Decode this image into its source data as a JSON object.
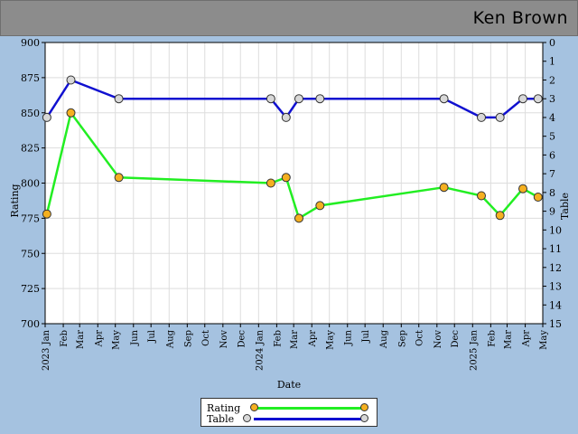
{
  "header": {
    "title": "Ken Brown"
  },
  "chart_data": {
    "type": "line",
    "xlabel": "Date",
    "ylabel": "Rating",
    "y2label": "Table",
    "ylim": [
      700,
      900
    ],
    "y2lim": [
      0,
      15
    ],
    "y2_inverted": true,
    "yticks": [
      "700",
      "725",
      "750",
      "775",
      "800",
      "825",
      "850",
      "875",
      "900"
    ],
    "y2ticks": [
      "0",
      "1",
      "2",
      "3",
      "4",
      "5",
      "6",
      "7",
      "8",
      "9",
      "10",
      "11",
      "12",
      "13",
      "14",
      "15"
    ],
    "xlim": [
      "2023-01-01",
      "2025-05-01"
    ],
    "xticks": [
      {
        "date": "2023-01-01",
        "label": "2023 Jan"
      },
      {
        "date": "2023-02-01",
        "label": "Feb"
      },
      {
        "date": "2023-03-01",
        "label": "Mar"
      },
      {
        "date": "2023-04-01",
        "label": "Apr"
      },
      {
        "date": "2023-05-01",
        "label": "May"
      },
      {
        "date": "2023-06-01",
        "label": "Jun"
      },
      {
        "date": "2023-07-01",
        "label": "Jul"
      },
      {
        "date": "2023-08-01",
        "label": "Aug"
      },
      {
        "date": "2023-09-01",
        "label": "Sep"
      },
      {
        "date": "2023-10-01",
        "label": "Oct"
      },
      {
        "date": "2023-11-01",
        "label": "Nov"
      },
      {
        "date": "2023-12-01",
        "label": "Dec"
      },
      {
        "date": "2024-01-01",
        "label": "2024 Jan"
      },
      {
        "date": "2024-02-01",
        "label": "Feb"
      },
      {
        "date": "2024-03-01",
        "label": "Mar"
      },
      {
        "date": "2024-04-01",
        "label": "Apr"
      },
      {
        "date": "2024-05-01",
        "label": "May"
      },
      {
        "date": "2024-06-01",
        "label": "Jun"
      },
      {
        "date": "2024-07-01",
        "label": "Jul"
      },
      {
        "date": "2024-08-01",
        "label": "Aug"
      },
      {
        "date": "2024-09-01",
        "label": "Sep"
      },
      {
        "date": "2024-10-01",
        "label": "Oct"
      },
      {
        "date": "2024-11-01",
        "label": "Nov"
      },
      {
        "date": "2024-12-01",
        "label": "Dec"
      },
      {
        "date": "2025-01-01",
        "label": "2025 Jan"
      },
      {
        "date": "2025-02-01",
        "label": "Feb"
      },
      {
        "date": "2025-03-01",
        "label": "Mar"
      },
      {
        "date": "2025-04-01",
        "label": "Apr"
      },
      {
        "date": "2025-05-01",
        "label": "May"
      }
    ],
    "grid": true,
    "legend_position": "bottom-center",
    "series": [
      {
        "name": "Rating",
        "axis": "left",
        "color": "#22ee22",
        "marker_color": "#f5b020",
        "points": [
          [
            "2023-01-04",
            778
          ],
          [
            "2023-02-14",
            850
          ],
          [
            "2023-05-07",
            804
          ],
          [
            "2024-01-22",
            800
          ],
          [
            "2024-02-17",
            804
          ],
          [
            "2024-03-10",
            775
          ],
          [
            "2024-04-15",
            784
          ],
          [
            "2024-11-13",
            797
          ],
          [
            "2025-01-16",
            791
          ],
          [
            "2025-02-17",
            777
          ],
          [
            "2025-03-28",
            796
          ],
          [
            "2025-04-23",
            790
          ]
        ]
      },
      {
        "name": "Table",
        "axis": "right",
        "color": "#1010d0",
        "marker_color": "#d8d8d8",
        "points": [
          [
            "2023-01-04",
            4
          ],
          [
            "2023-02-14",
            2
          ],
          [
            "2023-05-07",
            3
          ],
          [
            "2024-01-22",
            3
          ],
          [
            "2024-02-17",
            4
          ],
          [
            "2024-03-10",
            3
          ],
          [
            "2024-04-15",
            3
          ],
          [
            "2024-11-13",
            3
          ],
          [
            "2025-01-16",
            4
          ],
          [
            "2025-02-17",
            4
          ],
          [
            "2025-03-28",
            3
          ],
          [
            "2025-04-23",
            3
          ]
        ]
      }
    ]
  }
}
